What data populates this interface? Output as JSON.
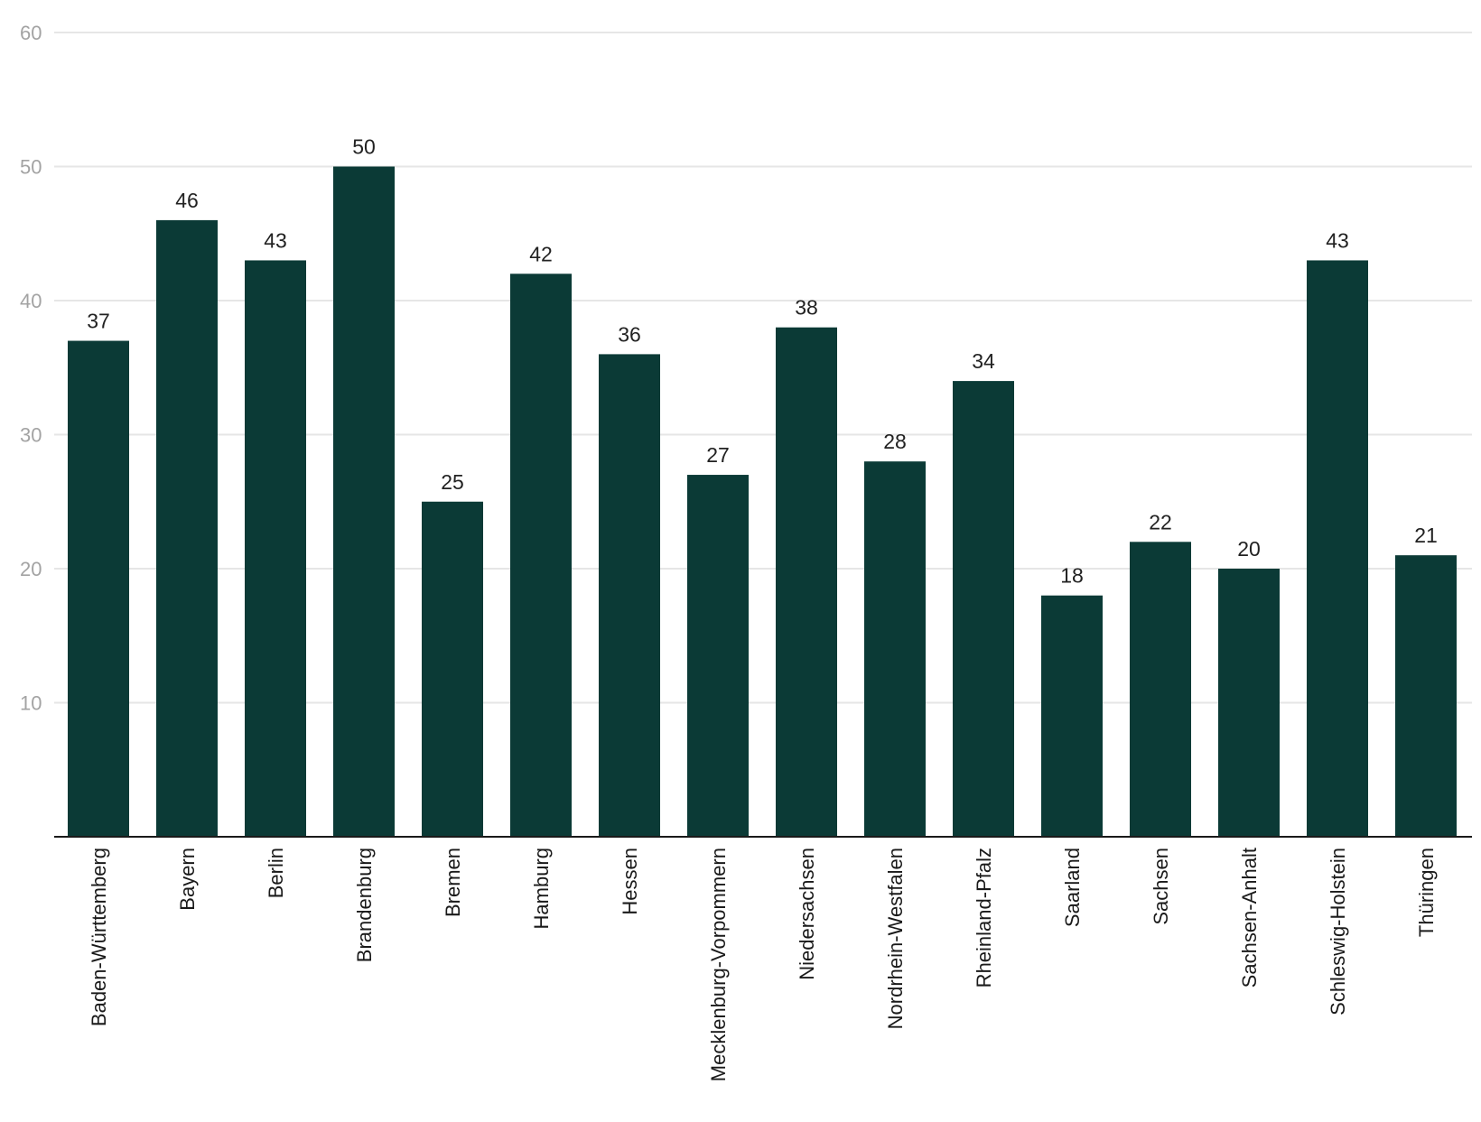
{
  "chart_data": {
    "type": "bar",
    "categories": [
      "Baden-Württemberg",
      "Bayern",
      "Berlin",
      "Brandenburg",
      "Bremen",
      "Hamburg",
      "Hessen",
      "Mecklenburg-Vorpommern",
      "Niedersachsen",
      "Nordrhein-Westfalen",
      "Rheinland-Pfalz",
      "Saarland",
      "Sachsen",
      "Sachsen-Anhalt",
      "Schleswig-Holstein",
      "Thüringen"
    ],
    "values": [
      37,
      46,
      43,
      50,
      25,
      42,
      36,
      27,
      38,
      28,
      34,
      18,
      22,
      20,
      43,
      21
    ],
    "data_labels": [
      "37",
      "46",
      "43",
      "50",
      "25",
      "42",
      "36",
      "27",
      "38",
      "28",
      "34",
      "18",
      "22",
      "20",
      "43",
      "21"
    ],
    "y_ticks": [
      10,
      20,
      30,
      40,
      50,
      60
    ],
    "y_tick_labels": [
      "10",
      "20",
      "30",
      "40",
      "50",
      "60"
    ],
    "ylim": [
      0,
      60
    ],
    "grid": true,
    "legend": "none",
    "bar_color": "#0b3a36"
  }
}
